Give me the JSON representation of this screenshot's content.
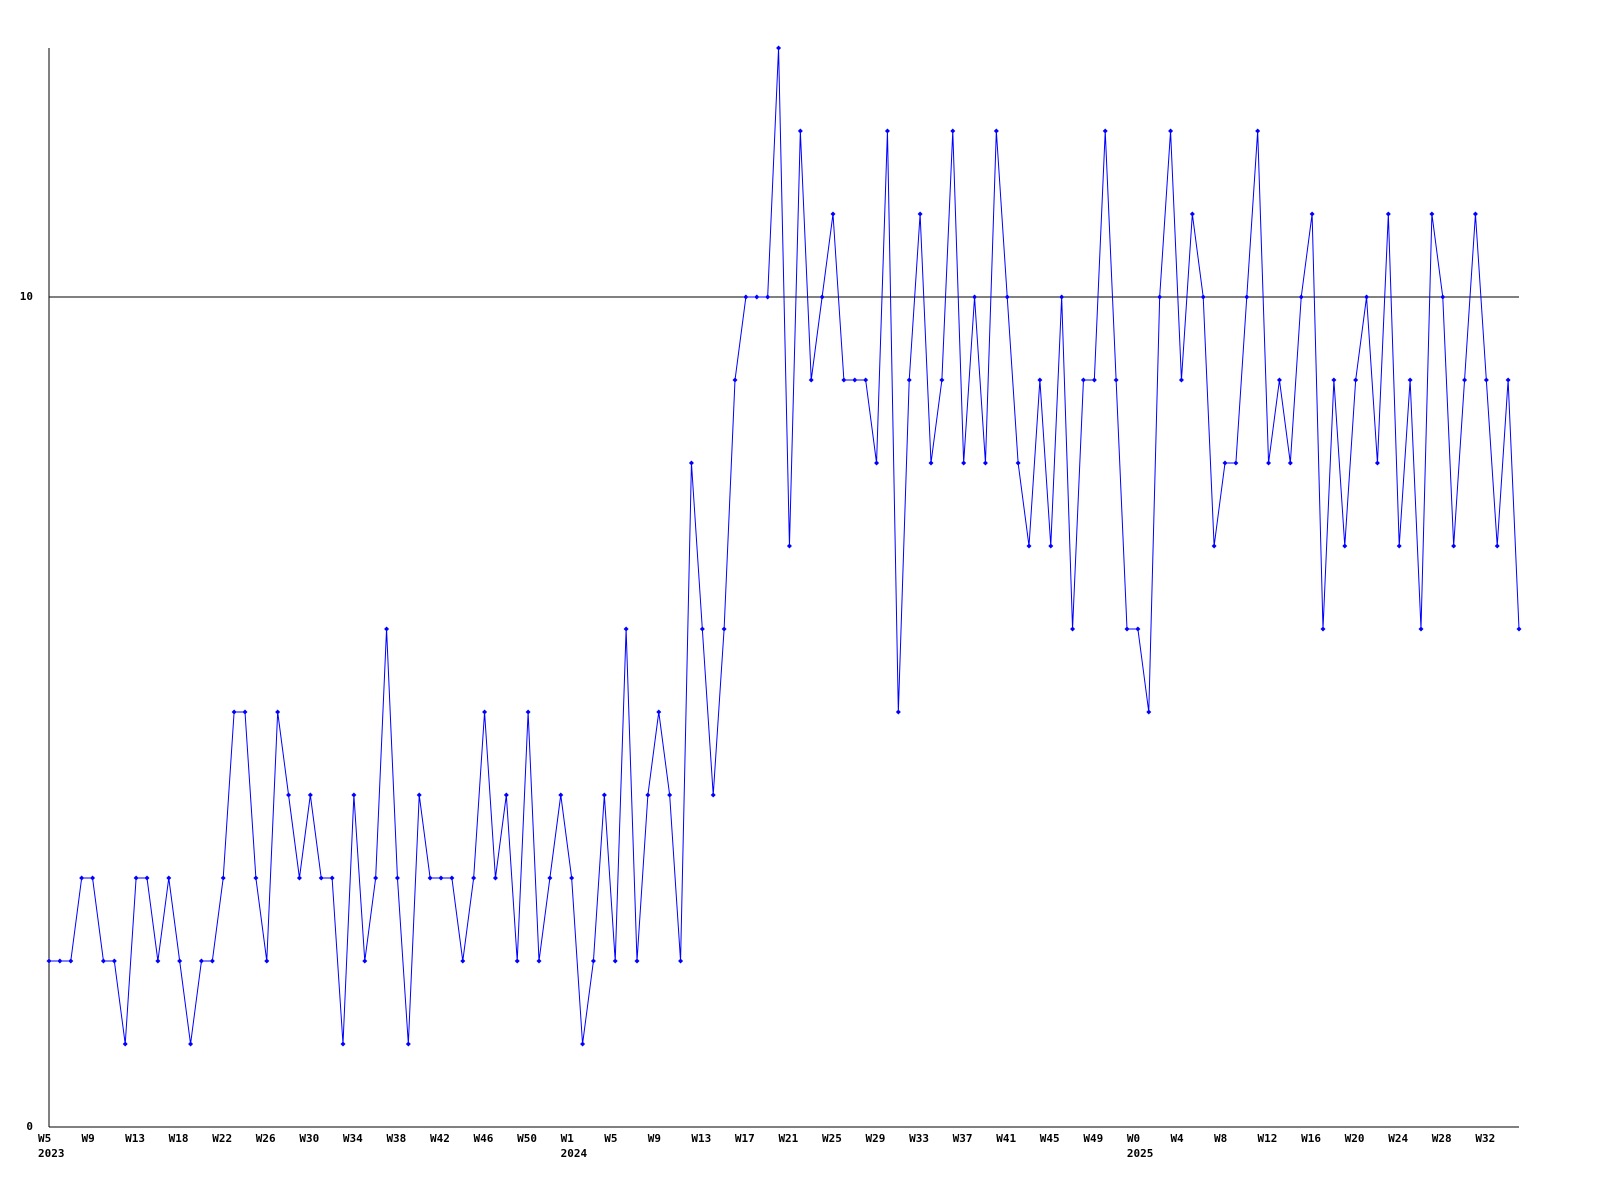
{
  "chart_data": {
    "type": "line",
    "categories": [
      "W5",
      null,
      null,
      null,
      "W9",
      null,
      null,
      null,
      "W13",
      null,
      null,
      null,
      "W18",
      null,
      null,
      null,
      "W22",
      null,
      null,
      null,
      "W26",
      null,
      null,
      null,
      "W30",
      null,
      null,
      null,
      "W34",
      null,
      null,
      null,
      "W38",
      null,
      null,
      null,
      "W42",
      null,
      null,
      null,
      "W46",
      null,
      null,
      null,
      "W50",
      null,
      null,
      null,
      "W1",
      null,
      null,
      null,
      "W5",
      null,
      null,
      null,
      "W9",
      null,
      null,
      null,
      "W13",
      null,
      null,
      null,
      "W17",
      null,
      null,
      null,
      "W21",
      null,
      null,
      null,
      "W25",
      null,
      null,
      null,
      "W29",
      null,
      null,
      null,
      "W33",
      null,
      null,
      null,
      "W37",
      null,
      null,
      null,
      "W41",
      null,
      null,
      null,
      "W45",
      null,
      null,
      null,
      "W49",
      null,
      null,
      null,
      "W0",
      null,
      null,
      null,
      "W4",
      null,
      null,
      null,
      "W8",
      null,
      null,
      null,
      "W12",
      null,
      null,
      null,
      "W16",
      null,
      null,
      null,
      "W20",
      null,
      null,
      null,
      "W24",
      null,
      null,
      null,
      "W28",
      null,
      null,
      null,
      "W32",
      null,
      null,
      null
    ],
    "year_labels": [
      "2023",
      null,
      null,
      null,
      null,
      null,
      null,
      null,
      null,
      null,
      null,
      null,
      null,
      null,
      null,
      null,
      null,
      null,
      null,
      null,
      null,
      null,
      null,
      null,
      null,
      null,
      null,
      null,
      null,
      null,
      null,
      null,
      null,
      null,
      null,
      null,
      null,
      null,
      null,
      null,
      null,
      null,
      null,
      null,
      null,
      null,
      null,
      null,
      "2024",
      null,
      null,
      null,
      null,
      null,
      null,
      null,
      null,
      null,
      null,
      null,
      null,
      null,
      null,
      null,
      null,
      null,
      null,
      null,
      null,
      null,
      null,
      null,
      null,
      null,
      null,
      null,
      null,
      null,
      null,
      null,
      null,
      null,
      null,
      null,
      null,
      null,
      null,
      null,
      null,
      null,
      null,
      null,
      null,
      null,
      null,
      null,
      null,
      null,
      null,
      null,
      "2025",
      null,
      null,
      null,
      null,
      null,
      null,
      null,
      null,
      null,
      null,
      null,
      null,
      null,
      null,
      null,
      null,
      null,
      null,
      null,
      null,
      null,
      null,
      null,
      null,
      null,
      null,
      null,
      null,
      null,
      null,
      null,
      null,
      null,
      null,
      null
    ],
    "series": [
      {
        "color": "#0000ff",
        "values": [
          2,
          2,
          2,
          3,
          3,
          2,
          2,
          1,
          3,
          3,
          2,
          3,
          2,
          1,
          2,
          2,
          3,
          5,
          5,
          3,
          2,
          5,
          4,
          3,
          4,
          3,
          3,
          1,
          4,
          2,
          3,
          6,
          3,
          1,
          4,
          3,
          3,
          3,
          2,
          3,
          5,
          3,
          4,
          2,
          5,
          2,
          3,
          4,
          3,
          1,
          2,
          4,
          2,
          6,
          2,
          4,
          5,
          4,
          2,
          8,
          6,
          4,
          6,
          9,
          10,
          10,
          10,
          13,
          7,
          12,
          9,
          10,
          11,
          9,
          9,
          9,
          8,
          12,
          5,
          9,
          11,
          8,
          9,
          12,
          8,
          10,
          8,
          12,
          10,
          8,
          7,
          9,
          7,
          10,
          6,
          9,
          9,
          12,
          9,
          6,
          6,
          5,
          10,
          12,
          9,
          11,
          10,
          7,
          8,
          8,
          10,
          12,
          8,
          9,
          8,
          10,
          11,
          6,
          9,
          7,
          9,
          10,
          8,
          11,
          7,
          9,
          6,
          11,
          10,
          7,
          9,
          11,
          9,
          7,
          9,
          6
        ]
      }
    ],
    "ylim": [
      0,
      13
    ],
    "yticks": [
      0,
      10
    ],
    "grid": true
  }
}
